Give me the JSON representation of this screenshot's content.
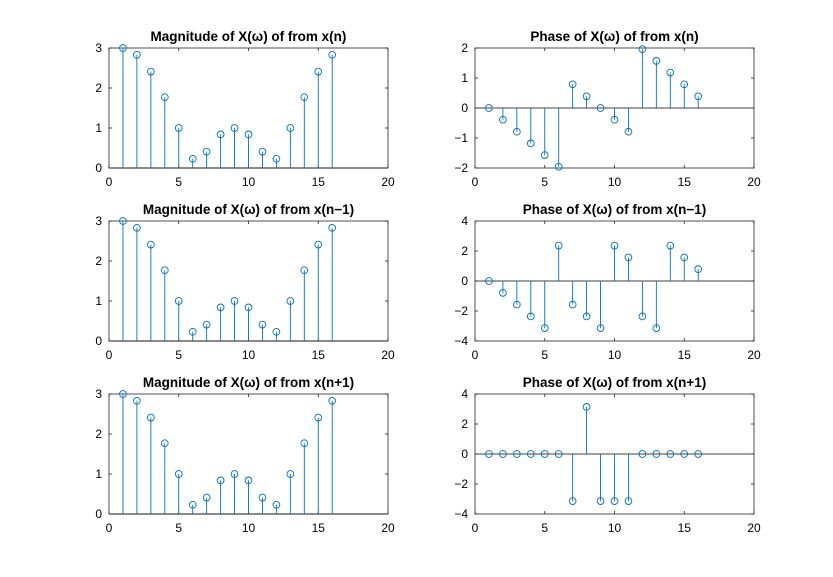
{
  "chart_data": [
    {
      "type": "stem",
      "title": "Magnitude of X(ω) of from x(n)",
      "x": [
        1,
        2,
        3,
        4,
        5,
        6,
        7,
        8,
        9,
        10,
        11,
        12,
        13,
        14,
        15,
        16
      ],
      "values": [
        3.0,
        2.83,
        2.41,
        1.77,
        1.0,
        0.23,
        0.41,
        0.84,
        1.0,
        0.84,
        0.41,
        0.23,
        1.0,
        1.77,
        2.41,
        2.83
      ],
      "xlim": [
        0,
        20
      ],
      "ylim": [
        0,
        3
      ],
      "xticks": [
        "0",
        "5",
        "10",
        "15",
        "20"
      ],
      "yticks": [
        "0",
        "1",
        "2",
        "3"
      ],
      "color": "#0072bd"
    },
    {
      "type": "stem",
      "title": "Phase  of X(ω) of from x(n)",
      "x": [
        1,
        2,
        3,
        4,
        5,
        6,
        7,
        8,
        9,
        10,
        11,
        12,
        13,
        14,
        15,
        16
      ],
      "values": [
        0,
        -0.39,
        -0.79,
        -1.18,
        -1.57,
        -1.96,
        0.79,
        0.39,
        0,
        -0.39,
        -0.79,
        1.96,
        1.57,
        1.18,
        0.79,
        0.39
      ],
      "xlim": [
        0,
        20
      ],
      "ylim": [
        -2,
        2
      ],
      "xticks": [
        "0",
        "5",
        "10",
        "15",
        "20"
      ],
      "yticks": [
        "-2",
        "-1",
        "0",
        "1",
        "2"
      ],
      "color": "#0072bd"
    },
    {
      "type": "stem",
      "title": "Magnitude of X(ω) of from x(n−1)",
      "x": [
        1,
        2,
        3,
        4,
        5,
        6,
        7,
        8,
        9,
        10,
        11,
        12,
        13,
        14,
        15,
        16
      ],
      "values": [
        3.0,
        2.83,
        2.41,
        1.77,
        1.0,
        0.23,
        0.41,
        0.84,
        1.0,
        0.84,
        0.41,
        0.23,
        1.0,
        1.77,
        2.41,
        2.83
      ],
      "xlim": [
        0,
        20
      ],
      "ylim": [
        0,
        3
      ],
      "xticks": [
        "0",
        "5",
        "10",
        "15",
        "20"
      ],
      "yticks": [
        "0",
        "1",
        "2",
        "3"
      ],
      "color": "#0072bd"
    },
    {
      "type": "stem",
      "title": "Phase  of X(ω) of from x(n−1)",
      "x": [
        1,
        2,
        3,
        4,
        5,
        6,
        7,
        8,
        9,
        10,
        11,
        12,
        13,
        14,
        15,
        16
      ],
      "values": [
        0,
        -0.79,
        -1.57,
        -2.36,
        -3.14,
        2.36,
        -1.57,
        -2.36,
        -3.14,
        2.36,
        1.57,
        -2.36,
        -3.14,
        2.36,
        1.57,
        0.79
      ],
      "xlim": [
        0,
        20
      ],
      "ylim": [
        -4,
        4
      ],
      "xticks": [
        "0",
        "5",
        "10",
        "15",
        "20"
      ],
      "yticks": [
        "-4",
        "-2",
        "0",
        "2",
        "4"
      ],
      "color": "#0072bd"
    },
    {
      "type": "stem",
      "title": "Magnitude of X(ω) of from x(n+1)",
      "x": [
        1,
        2,
        3,
        4,
        5,
        6,
        7,
        8,
        9,
        10,
        11,
        12,
        13,
        14,
        15,
        16
      ],
      "values": [
        3.0,
        2.83,
        2.41,
        1.77,
        1.0,
        0.23,
        0.41,
        0.84,
        1.0,
        0.84,
        0.41,
        0.23,
        1.0,
        1.77,
        2.41,
        2.83
      ],
      "xlim": [
        0,
        20
      ],
      "ylim": [
        0,
        3
      ],
      "xticks": [
        "0",
        "5",
        "10",
        "15",
        "20"
      ],
      "yticks": [
        "0",
        "1",
        "2",
        "3"
      ],
      "color": "#0072bd"
    },
    {
      "type": "stem",
      "title": "Phase  of X(ω) of from x(n+1)",
      "x": [
        1,
        2,
        3,
        4,
        5,
        6,
        7,
        8,
        9,
        10,
        11,
        12,
        13,
        14,
        15,
        16
      ],
      "values": [
        0,
        0,
        0,
        0,
        0,
        0,
        -3.14,
        3.14,
        -3.14,
        -3.14,
        -3.14,
        0,
        0,
        0,
        0,
        0
      ],
      "xlim": [
        0,
        20
      ],
      "ylim": [
        -4,
        4
      ],
      "xticks": [
        "0",
        "5",
        "10",
        "15",
        "20"
      ],
      "yticks": [
        "-4",
        "-2",
        "0",
        "2",
        "4"
      ],
      "color": "#0072bd"
    }
  ]
}
